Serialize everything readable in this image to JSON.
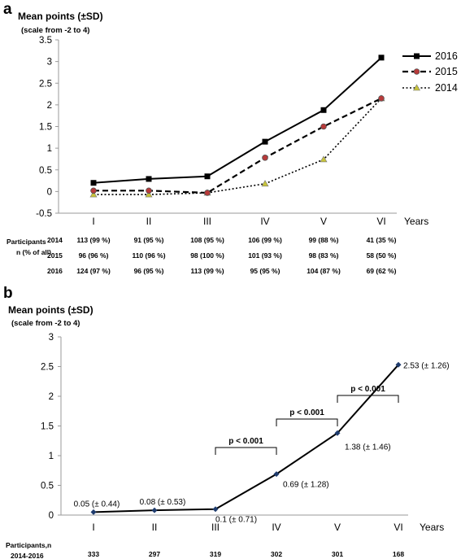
{
  "chart_data": [
    {
      "panel": "a",
      "type": "line",
      "ylabel": "Mean points (±SD)",
      "ylabel_sub": "(scale from -2 to 4)",
      "xlabel": "Years",
      "categories": [
        "I",
        "II",
        "III",
        "IV",
        "V",
        "VI"
      ],
      "ylim": [
        -0.5,
        3.5
      ],
      "yticks": [
        "-0.5",
        "0",
        "0.5",
        "1",
        "1.5",
        "2",
        "2.5",
        "3",
        "3.5"
      ],
      "grid": false,
      "legend": "right",
      "series": [
        {
          "name": "2016",
          "values": [
            0.2,
            0.29,
            0.35,
            1.15,
            1.88,
            3.09
          ],
          "color": "#000000",
          "style": "solid",
          "marker": "square"
        },
        {
          "name": "2015",
          "values": [
            0.02,
            0.02,
            -0.03,
            0.78,
            1.5,
            2.15
          ],
          "color": "#000000",
          "style": "dashed",
          "marker": "circle",
          "marker_fill": "#b83a3a"
        },
        {
          "name": "2014",
          "values": [
            -0.07,
            -0.07,
            -0.03,
            0.18,
            0.74,
            2.15
          ],
          "color": "#000000",
          "style": "dotted",
          "marker": "triangle",
          "marker_fill": "#c8c43a"
        }
      ],
      "table": {
        "header": "Participants",
        "header_sub": "n (% of all)",
        "rows": [
          {
            "label": "2014",
            "cells": [
              "113 (99 %)",
              "91 (95 %)",
              "108 (95 %)",
              "106 (99 %)",
              "99 (88 %)",
              "41 (35 %)"
            ]
          },
          {
            "label": "2015",
            "cells": [
              "96 (96 %)",
              "110 (96 %)",
              "98 (100 %)",
              "101 (93 %)",
              "98 (83 %)",
              "58 (50 %)"
            ]
          },
          {
            "label": "2016",
            "cells": [
              "124 (97 %)",
              "96 (95 %)",
              "113 (99 %)",
              "95 (95 %)",
              "104 (87 %)",
              "69 (62 %)"
            ]
          }
        ]
      }
    },
    {
      "panel": "b",
      "type": "line",
      "ylabel": "Mean points (±SD)",
      "ylabel_sub": "(scale from -2 to 4)",
      "xlabel": "Years",
      "categories": [
        "I",
        "II",
        "III",
        "IV",
        "V",
        "VI"
      ],
      "ylim": [
        0,
        3
      ],
      "yticks": [
        "0",
        "0.5",
        "1",
        "1.5",
        "2",
        "2.5",
        "3"
      ],
      "grid": false,
      "series": [
        {
          "values": [
            0.05,
            0.08,
            0.1,
            0.69,
            1.38,
            2.53
          ],
          "color": "#000000",
          "style": "solid",
          "marker": "diamond"
        }
      ],
      "point_labels": [
        "0.05 (± 0.44)",
        "0.08 (± 0.53)",
        "0.1 (± 0.71)",
        "0.69 (± 1.28)",
        "1.38 (± 1.46)",
        "2.53 (± 1.26)"
      ],
      "significance": [
        {
          "from": "III",
          "to": "IV",
          "label": "p < 0.001"
        },
        {
          "from": "IV",
          "to": "V",
          "label": "p < 0.001"
        },
        {
          "from": "V",
          "to": "VI",
          "label": "p < 0.001"
        }
      ],
      "table": {
        "header": "Participants,n",
        "header_sub": "2014-2016",
        "cells": [
          "333",
          "297",
          "319",
          "302",
          "301",
          "168"
        ]
      }
    }
  ]
}
